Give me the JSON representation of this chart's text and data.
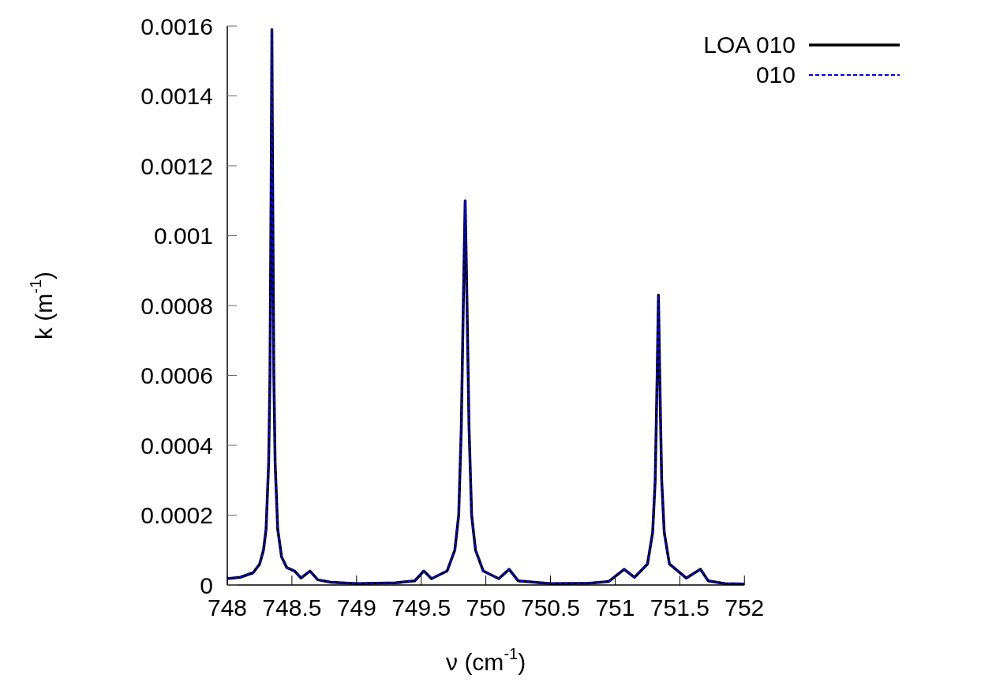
{
  "chart_data": {
    "type": "line",
    "xlabel": "ν (cm$^{-1}$)",
    "ylabel": "k (m$^{-1}$)",
    "x": [
      748.0,
      748.1,
      748.2,
      748.25,
      748.28,
      748.3,
      748.32,
      748.33,
      748.34,
      748.345,
      748.35,
      748.36,
      748.37,
      748.39,
      748.42,
      748.46,
      748.52,
      748.57,
      748.64,
      748.7,
      748.8,
      749.0,
      749.3,
      749.45,
      749.52,
      749.58,
      749.7,
      749.76,
      749.79,
      749.81,
      749.83,
      749.84,
      749.85,
      749.87,
      749.89,
      749.92,
      749.98,
      750.1,
      750.18,
      750.25,
      750.5,
      750.8,
      750.95,
      751.07,
      751.15,
      751.25,
      751.29,
      751.31,
      751.325,
      751.335,
      751.345,
      751.36,
      751.38,
      751.42,
      751.55,
      751.66,
      751.72,
      751.85,
      752.0
    ],
    "series": [
      {
        "name": "LOA 010",
        "color": "#000000",
        "line_style": "solid",
        "values": [
          1.8e-05,
          2.2e-05,
          3.5e-05,
          6e-05,
          0.0001,
          0.00016,
          0.00035,
          0.0006,
          0.0012,
          0.00159,
          0.0012,
          0.0006,
          0.00035,
          0.00016,
          8e-05,
          5e-05,
          4e-05,
          2e-05,
          4e-05,
          1.5e-05,
          8e-06,
          4e-06,
          6e-06,
          1.2e-05,
          4e-05,
          1.8e-05,
          4e-05,
          0.0001,
          0.0002,
          0.00045,
          0.0009,
          0.0011,
          0.0009,
          0.00045,
          0.0002,
          0.0001,
          4e-05,
          1.8e-05,
          4.5e-05,
          1.2e-05,
          4e-06,
          5e-06,
          1e-05,
          4.5e-05,
          2.2e-05,
          6e-05,
          0.00015,
          0.0003,
          0.0006,
          0.00083,
          0.0006,
          0.0003,
          0.00015,
          6e-05,
          2e-05,
          4.5e-05,
          1.2e-05,
          4e-06,
          3e-06
        ]
      },
      {
        "name": "010",
        "color": "#0000ff",
        "line_style": "dashed",
        "values": [
          1.8e-05,
          2.2e-05,
          3.5e-05,
          6e-05,
          0.0001,
          0.00016,
          0.00035,
          0.0006,
          0.0012,
          0.00159,
          0.0012,
          0.0006,
          0.00035,
          0.00016,
          8e-05,
          5e-05,
          4e-05,
          2e-05,
          4e-05,
          1.5e-05,
          8e-06,
          4e-06,
          6e-06,
          1.2e-05,
          4e-05,
          1.8e-05,
          4e-05,
          0.0001,
          0.0002,
          0.00045,
          0.0009,
          0.0011,
          0.0009,
          0.00045,
          0.0002,
          0.0001,
          4e-05,
          1.8e-05,
          4.5e-05,
          1.2e-05,
          4e-06,
          5e-06,
          1e-05,
          4.5e-05,
          2.2e-05,
          6e-05,
          0.00015,
          0.0003,
          0.0006,
          0.00083,
          0.0006,
          0.0003,
          0.00015,
          6e-05,
          2e-05,
          4.5e-05,
          1.2e-05,
          4e-06,
          3e-06
        ]
      }
    ],
    "xlim": [
      748,
      752
    ],
    "xticks": [
      748,
      748.5,
      749,
      749.5,
      750,
      750.5,
      751,
      751.5,
      752
    ],
    "ylim": [
      0,
      0.0016
    ],
    "yticks": [
      0,
      0.0002,
      0.0004,
      0.0006,
      0.0008,
      0.001,
      0.0012,
      0.0014,
      0.0016
    ],
    "grid": false,
    "legend": "top right",
    "marker": "none"
  }
}
